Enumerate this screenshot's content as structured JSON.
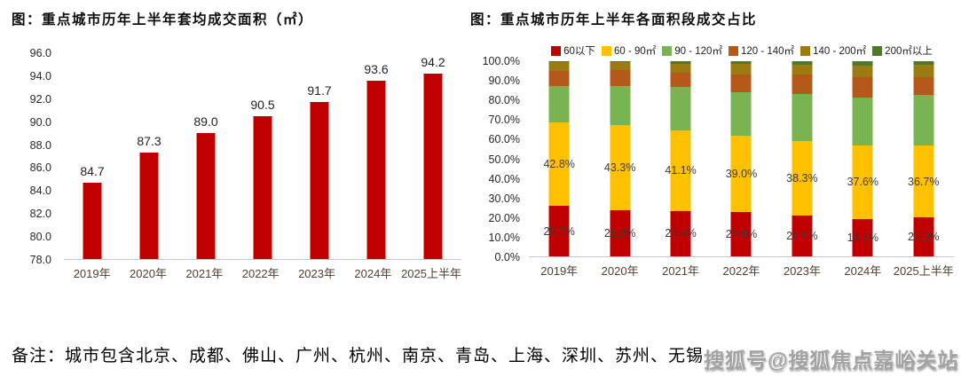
{
  "titles": {
    "left": "图：重点城市历年上半年套均成交面积（㎡）",
    "right": "图：重点城市历年上半年各面积段成交占比"
  },
  "note": "备注：城市包含北京、成都、佛山、广州、杭州、南京、青岛、上海、深圳、苏州、无锡",
  "watermark": "搜狐号@搜狐焦点嘉峪关站",
  "colors": {
    "bar_red": "#c00000",
    "yellow": "#ffc000",
    "green": "#79b352",
    "orange_brown": "#b4591a",
    "dark_yellow": "#9c7c10",
    "dark_green": "#4e7a28",
    "axis_line": "#c6c6c6"
  },
  "chart_data": [
    {
      "type": "bar",
      "title": "图：重点城市历年上半年套均成交面积（㎡）",
      "categories": [
        "2019年",
        "2020年",
        "2021年",
        "2022年",
        "2023年",
        "2024年",
        "2025上半年"
      ],
      "values": [
        84.7,
        87.3,
        89.0,
        90.5,
        91.7,
        93.6,
        94.2
      ],
      "labels": [
        "84.7",
        "87.3",
        "89.0",
        "90.5",
        "91.7",
        "93.6",
        "94.2"
      ],
      "ylim": [
        78.0,
        96.0
      ],
      "ytick_step": 2.0,
      "yticks": [
        "78.0",
        "80.0",
        "82.0",
        "84.0",
        "86.0",
        "88.0",
        "90.0",
        "92.0",
        "94.0",
        "96.0"
      ],
      "bar_color": "#c00000",
      "grid": false,
      "legend_position": "none",
      "xlabel": "",
      "ylabel": ""
    },
    {
      "type": "stacked-bar-100",
      "title": "图：重点城市历年上半年各面积段成交占比",
      "categories": [
        "2019年",
        "2020年",
        "2021年",
        "2022年",
        "2023年",
        "2024年",
        "2025上半年"
      ],
      "series": [
        {
          "name": "60以下",
          "color": "#c00000",
          "labeled": true,
          "values": [
            25.7,
            23.8,
            23.4,
            22.8,
            21.0,
            19.3,
            20.0
          ],
          "labels": [
            "25.7%",
            "23.8%",
            "23.4%",
            "22.8%",
            "21.0%",
            "19.3%",
            "20.0%"
          ]
        },
        {
          "name": "60 - 90㎡",
          "color": "#ffc000",
          "labeled": true,
          "values": [
            42.8,
            43.3,
            41.1,
            39.0,
            38.3,
            37.6,
            36.7
          ],
          "labels": [
            "42.8%",
            "43.3%",
            "41.1%",
            "39.0%",
            "38.3%",
            "37.6%",
            "36.7%"
          ]
        },
        {
          "name": "90 - 120㎡",
          "color": "#79b352",
          "labeled": false,
          "values": [
            19.0,
            20.4,
            22.4,
            22.2,
            23.7,
            24.6,
            25.9
          ]
        },
        {
          "name": "120 - 140㎡",
          "color": "#b4591a",
          "labeled": false,
          "values": [
            7.5,
            7.8,
            7.4,
            9.0,
            10.0,
            10.3,
            9.4
          ]
        },
        {
          "name": "140 - 200㎡",
          "color": "#9c7c10",
          "labeled": false,
          "values": [
            4.6,
            4.2,
            4.5,
            5.5,
            5.0,
            6.0,
            6.1
          ]
        },
        {
          "name": "200㎡以上",
          "color": "#4e7a28",
          "labeled": false,
          "values": [
            0.4,
            0.5,
            1.2,
            1.5,
            2.0,
            2.2,
            1.9
          ]
        }
      ],
      "ylim": [
        0,
        100
      ],
      "ytick_step": 10,
      "yticks": [
        "0.0%",
        "10.0%",
        "20.0%",
        "30.0%",
        "40.0%",
        "50.0%",
        "60.0%",
        "70.0%",
        "80.0%",
        "90.0%",
        "100.0%"
      ],
      "grid": false,
      "legend_position": "top",
      "xlabel": "",
      "ylabel": ""
    }
  ]
}
